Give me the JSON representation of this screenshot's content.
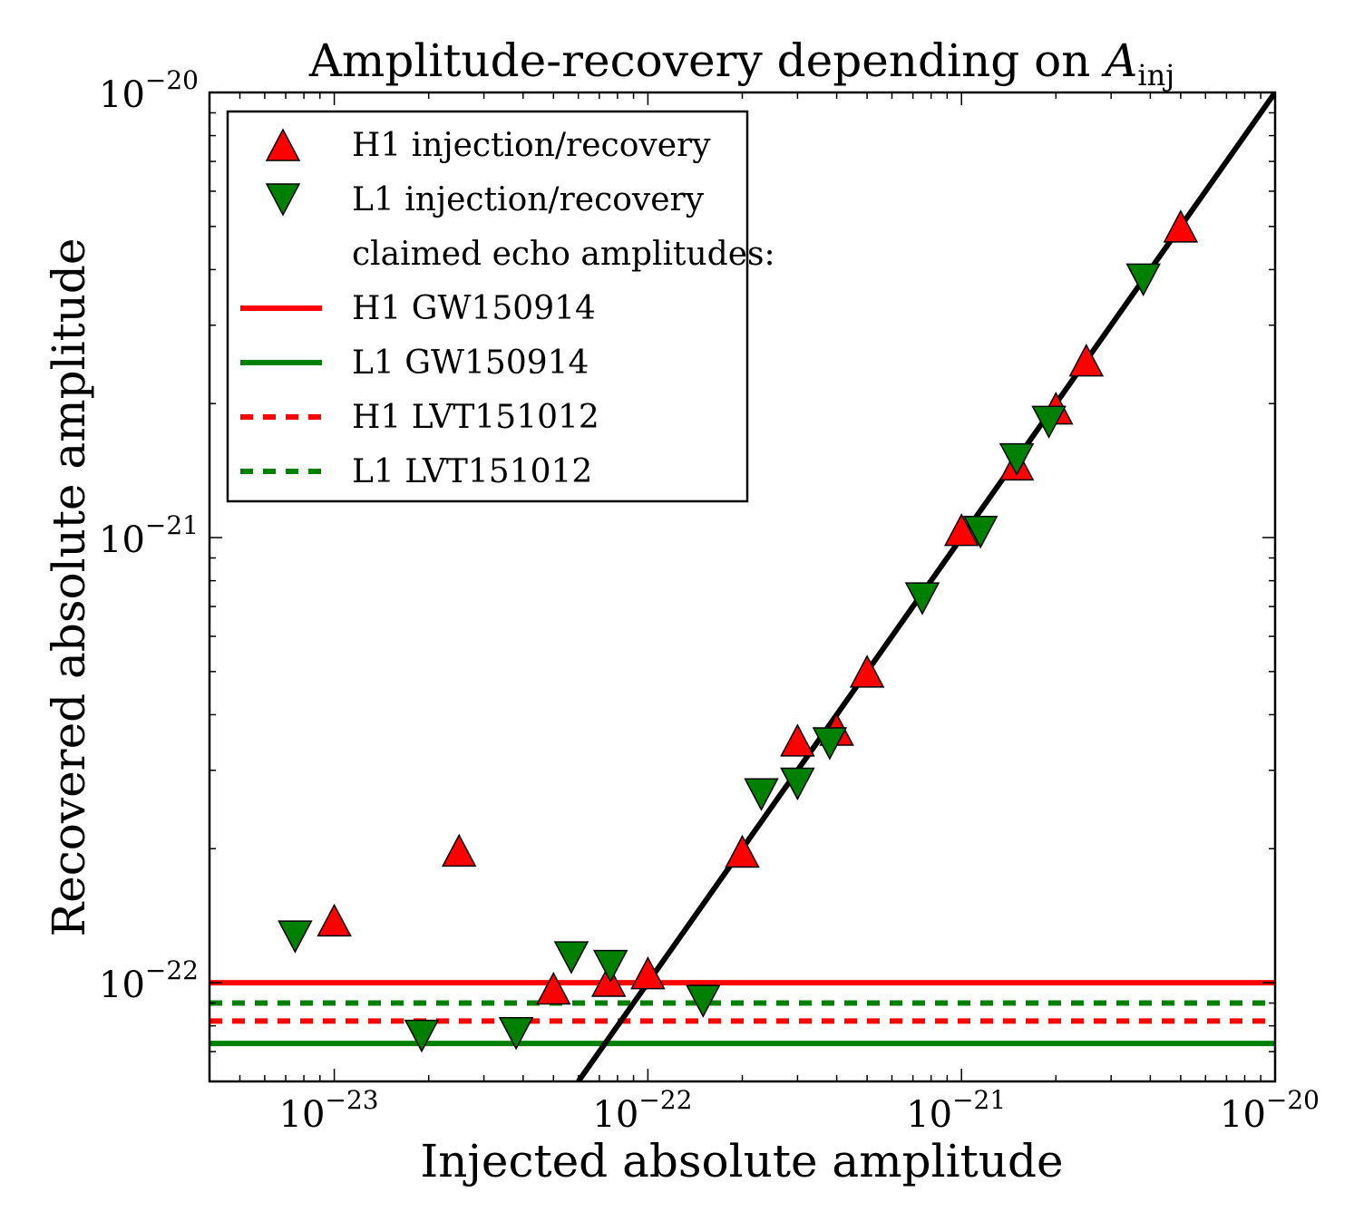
{
  "chart_data": {
    "type": "scatter",
    "title_main": "Amplitude-recovery depending on ",
    "title_var": "A",
    "title_sub": "inj",
    "xlabel": "Injected absolute amplitude",
    "ylabel": "Recovered absolute amplitude",
    "x_scale": "log",
    "y_scale": "log",
    "xlim": [
      4e-24,
      1e-20
    ],
    "ylim": [
      6e-23,
      1e-20
    ],
    "x_ticks": [
      {
        "value": 1e-23,
        "base": "10",
        "exp": "−23"
      },
      {
        "value": 1e-22,
        "base": "10",
        "exp": "−22"
      },
      {
        "value": 1e-21,
        "base": "10",
        "exp": "−21"
      },
      {
        "value": 1e-20,
        "base": "10",
        "exp": "−20"
      }
    ],
    "y_ticks": [
      {
        "value": 1e-22,
        "base": "10",
        "exp": "−22"
      },
      {
        "value": 1e-21,
        "base": "10",
        "exp": "−21"
      },
      {
        "value": 1e-20,
        "base": "10",
        "exp": "−20"
      }
    ],
    "grid": false,
    "legend_position": "top-left",
    "series": [
      {
        "name": "H1 injection/recovery",
        "marker": "triangle-up",
        "color": "#ff0000",
        "points": [
          [
            1e-23,
            1.38e-22
          ],
          [
            2.5e-23,
            1.98e-22
          ],
          [
            5e-23,
            9.7e-23
          ],
          [
            7.5e-23,
            1.01e-22
          ],
          [
            1e-22,
            1.05e-22
          ],
          [
            2e-22,
            1.97e-22
          ],
          [
            3e-22,
            3.5e-22
          ],
          [
            4e-22,
            3.7e-22
          ],
          [
            5e-22,
            5e-22
          ],
          [
            1e-21,
            1.04e-21
          ],
          [
            1.5e-21,
            1.46e-21
          ],
          [
            2e-21,
            1.95e-21
          ],
          [
            2.5e-21,
            2.5e-21
          ],
          [
            5e-21,
            5e-21
          ]
        ]
      },
      {
        "name": "L1 injection/recovery",
        "marker": "triangle-down",
        "color": "#008000",
        "points": [
          [
            7.5e-24,
            1.27e-22
          ],
          [
            1.9e-23,
            7.6e-23
          ],
          [
            3.8e-23,
            7.7e-23
          ],
          [
            5.7e-23,
            1.14e-22
          ],
          [
            7.6e-23,
            1.09e-22
          ],
          [
            1.5e-22,
            9.1e-23
          ],
          [
            2.3e-22,
            2.65e-22
          ],
          [
            3e-22,
            2.8e-22
          ],
          [
            3.8e-22,
            3.45e-22
          ],
          [
            7.5e-22,
            7.3e-22
          ],
          [
            1.15e-21,
            1.03e-21
          ],
          [
            1.5e-21,
            1.5e-21
          ],
          [
            1.9e-21,
            1.82e-21
          ],
          [
            3.8e-21,
            3.8e-21
          ]
        ]
      }
    ],
    "reference_line": {
      "slope_loglog": 1,
      "color": "#000000"
    },
    "legend_header": "claimed echo amplitudes:",
    "hlines": [
      {
        "name": "H1 GW150914",
        "y": 1e-22,
        "color": "#ff0000",
        "style": "solid"
      },
      {
        "name": "L1 GW150914",
        "y": 7.3e-23,
        "color": "#008000",
        "style": "solid"
      },
      {
        "name": "H1 LVT151012",
        "y": 8.2e-23,
        "color": "#ff0000",
        "style": "dashed"
      },
      {
        "name": "L1 LVT151012",
        "y": 9e-23,
        "color": "#008000",
        "style": "dashed"
      }
    ]
  }
}
